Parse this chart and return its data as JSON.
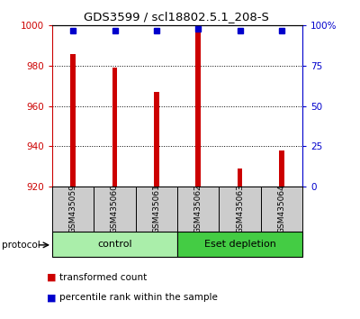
{
  "title": "GDS3599 / scl18802.5.1_208-S",
  "samples": [
    "GSM435059",
    "GSM435060",
    "GSM435061",
    "GSM435062",
    "GSM435063",
    "GSM435064"
  ],
  "transformed_counts": [
    986,
    979,
    967,
    998,
    929,
    938
  ],
  "percentile_ranks": [
    97,
    97,
    97,
    98,
    97,
    97
  ],
  "ylim_left": [
    920,
    1000
  ],
  "ylim_right": [
    0,
    100
  ],
  "yticks_left": [
    920,
    940,
    960,
    980,
    1000
  ],
  "yticks_right": [
    0,
    25,
    50,
    75,
    100
  ],
  "ytick_labels_right": [
    "0",
    "25",
    "50",
    "75",
    "100%"
  ],
  "groups": [
    {
      "label": "control",
      "indices": [
        0,
        1,
        2
      ],
      "color": "#aaeeaa"
    },
    {
      "label": "Eset depletion",
      "indices": [
        3,
        4,
        5
      ],
      "color": "#44cc44"
    }
  ],
  "bar_color": "#cc0000",
  "dot_color": "#0000cc",
  "grid_color": "#000000",
  "background_color": "#ffffff",
  "tick_area_bg": "#cccccc",
  "left_tick_color": "#cc0000",
  "right_tick_color": "#0000cc",
  "legend_items": [
    {
      "color": "#cc0000",
      "label": "transformed count"
    },
    {
      "color": "#0000cc",
      "label": "percentile rank within the sample"
    }
  ],
  "protocol_label": "protocol",
  "bar_width": 0.12
}
